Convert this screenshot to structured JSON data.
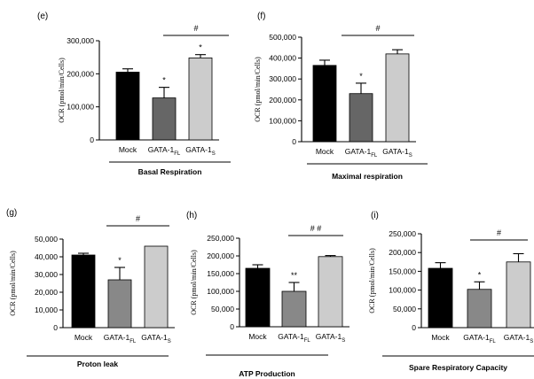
{
  "chart_data": [
    {
      "type": "bar",
      "panel": "(e)",
      "title": "",
      "xlabel": "Basal Respiration",
      "ylabel": "OCR (pmol/min/Cells)",
      "ylim": [
        0,
        300000
      ],
      "yticks": [
        "0",
        "100,000",
        "200,000",
        "300,000"
      ],
      "categories": [
        "Mock",
        "GATA-1FL",
        "GATA-1S"
      ],
      "category_labels": [
        {
          "main": "Mock",
          "sub": ""
        },
        {
          "main": "GATA-1",
          "sub": "FL"
        },
        {
          "main": "GATA-1",
          "sub": "S"
        }
      ],
      "values": [
        205000,
        127000,
        248000
      ],
      "errors": [
        10000,
        32000,
        10000
      ],
      "colors": [
        "#000000",
        "#666666",
        "#cccccc"
      ],
      "bar_annotations": [
        "",
        "*",
        "*"
      ],
      "bracket": {
        "label": "#",
        "from": 1,
        "to": 2
      }
    },
    {
      "type": "bar",
      "panel": "(f)",
      "title": "",
      "xlabel": "Maximal respiration",
      "ylabel": "OCR (pmol/min/Cells)",
      "ylim": [
        0,
        500000
      ],
      "yticks": [
        "0",
        "100,000",
        "200,000",
        "300,000",
        "400,000",
        "500,000"
      ],
      "categories": [
        "Mock",
        "GATA-1FL",
        "GATA-1S"
      ],
      "category_labels": [
        {
          "main": "Mock",
          "sub": ""
        },
        {
          "main": "GATA-1",
          "sub": "FL"
        },
        {
          "main": "GATA-1",
          "sub": "S"
        }
      ],
      "values": [
        365000,
        230000,
        420000
      ],
      "errors": [
        25000,
        50000,
        20000
      ],
      "colors": [
        "#000000",
        "#666666",
        "#cccccc"
      ],
      "bar_annotations": [
        "",
        "*",
        ""
      ],
      "bracket": {
        "label": "#",
        "from": 1,
        "to": 2
      }
    },
    {
      "type": "bar",
      "panel": "(g)",
      "title": "",
      "xlabel": "Proton leak",
      "ylabel": "OCR (pmol/min/Cells)",
      "ylim": [
        0,
        50000
      ],
      "yticks": [
        "0",
        "10,000",
        "20,000",
        "30,000",
        "40,000",
        "50,000"
      ],
      "categories": [
        "Mock",
        "GATA-1FL",
        "GATA-1S"
      ],
      "category_labels": [
        {
          "main": "Mock",
          "sub": ""
        },
        {
          "main": "GATA-1",
          "sub": "FL"
        },
        {
          "main": "GATA-1",
          "sub": "S"
        }
      ],
      "values": [
        41000,
        27000,
        46000
      ],
      "errors": [
        1000,
        7000,
        0
      ],
      "colors": [
        "#000000",
        "#888888",
        "#cccccc"
      ],
      "bar_annotations": [
        "",
        "*",
        ""
      ],
      "bracket": {
        "label": "#",
        "from": 1,
        "to": 2
      }
    },
    {
      "type": "bar",
      "panel": "(h)",
      "title": "",
      "xlabel": "ATP Production",
      "ylabel": "OCR (pmol/min/Cells)",
      "ylim": [
        0,
        250000
      ],
      "yticks": [
        "0",
        "50,000",
        "100,000",
        "150,000",
        "200,000",
        "250,000"
      ],
      "categories": [
        "Mock",
        "GATA-1FL",
        "GATA-1S"
      ],
      "category_labels": [
        {
          "main": "Mock",
          "sub": ""
        },
        {
          "main": "GATA-1",
          "sub": "FL"
        },
        {
          "main": "GATA-1",
          "sub": "S"
        }
      ],
      "values": [
        165000,
        100000,
        198000
      ],
      "errors": [
        10000,
        25000,
        3000
      ],
      "colors": [
        "#000000",
        "#888888",
        "#cccccc"
      ],
      "bar_annotations": [
        "",
        "**",
        ""
      ],
      "bracket": {
        "label": "# #",
        "from": 1,
        "to": 2
      }
    },
    {
      "type": "bar",
      "panel": "(i)",
      "title": "",
      "xlabel": "Spare Respiratory Capacity",
      "ylabel": "OCR (pmol/min/Cells)",
      "ylim": [
        0,
        250000
      ],
      "yticks": [
        "0",
        "50,000",
        "100,000",
        "150,000",
        "200,000",
        "250,000"
      ],
      "categories": [
        "Mock",
        "GATA-1FL",
        "GATA-1S"
      ],
      "category_labels": [
        {
          "main": "Mock",
          "sub": ""
        },
        {
          "main": "GATA-1",
          "sub": "FL"
        },
        {
          "main": "GATA-1",
          "sub": "S"
        }
      ],
      "values": [
        158000,
        102000,
        175000
      ],
      "errors": [
        15000,
        20000,
        22000
      ],
      "colors": [
        "#000000",
        "#888888",
        "#cccccc"
      ],
      "bar_annotations": [
        "",
        "*",
        ""
      ],
      "bracket": {
        "label": "#",
        "from": 1,
        "to": 2
      }
    }
  ]
}
